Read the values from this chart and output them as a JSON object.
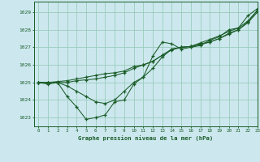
{
  "title": "Graphe pression niveau de la mer (hPa)",
  "bg_color": "#cce8ee",
  "grid_color": "#99ccbb",
  "line_color": "#1a5c28",
  "xlim": [
    -0.5,
    23
  ],
  "ylim": [
    1022.5,
    1029.6
  ],
  "yticks": [
    1023,
    1024,
    1025,
    1026,
    1027,
    1028,
    1029
  ],
  "xticks": [
    0,
    1,
    2,
    3,
    4,
    5,
    6,
    7,
    8,
    9,
    10,
    11,
    12,
    13,
    14,
    15,
    16,
    17,
    18,
    19,
    20,
    21,
    22,
    23
  ],
  "series1": [
    1025.0,
    1024.9,
    1025.0,
    1024.2,
    1023.6,
    1022.9,
    1023.0,
    1023.15,
    1023.9,
    1024.0,
    1024.9,
    1025.3,
    1026.5,
    1027.3,
    1027.2,
    1026.9,
    1027.0,
    1027.1,
    1027.4,
    1027.6,
    1028.0,
    1028.1,
    1028.8,
    1029.2
  ],
  "series2": [
    1025.0,
    1025.0,
    1025.05,
    1025.1,
    1025.2,
    1025.3,
    1025.4,
    1025.5,
    1025.55,
    1025.65,
    1025.9,
    1026.0,
    1026.2,
    1026.55,
    1026.9,
    1027.0,
    1027.05,
    1027.15,
    1027.3,
    1027.5,
    1027.75,
    1028.0,
    1028.4,
    1029.0
  ],
  "series3": [
    1025.0,
    1025.0,
    1025.0,
    1025.0,
    1025.1,
    1025.15,
    1025.2,
    1025.3,
    1025.4,
    1025.55,
    1025.8,
    1026.0,
    1026.2,
    1026.55,
    1026.85,
    1027.0,
    1027.05,
    1027.2,
    1027.3,
    1027.5,
    1027.8,
    1028.0,
    1028.45,
    1029.1
  ],
  "series4": [
    1025.0,
    1025.0,
    1025.0,
    1024.8,
    1024.5,
    1024.2,
    1023.9,
    1023.8,
    1024.0,
    1024.5,
    1025.0,
    1025.3,
    1025.8,
    1026.45,
    1026.9,
    1027.0,
    1027.05,
    1027.25,
    1027.45,
    1027.65,
    1027.9,
    1028.1,
    1028.5,
    1029.1
  ]
}
